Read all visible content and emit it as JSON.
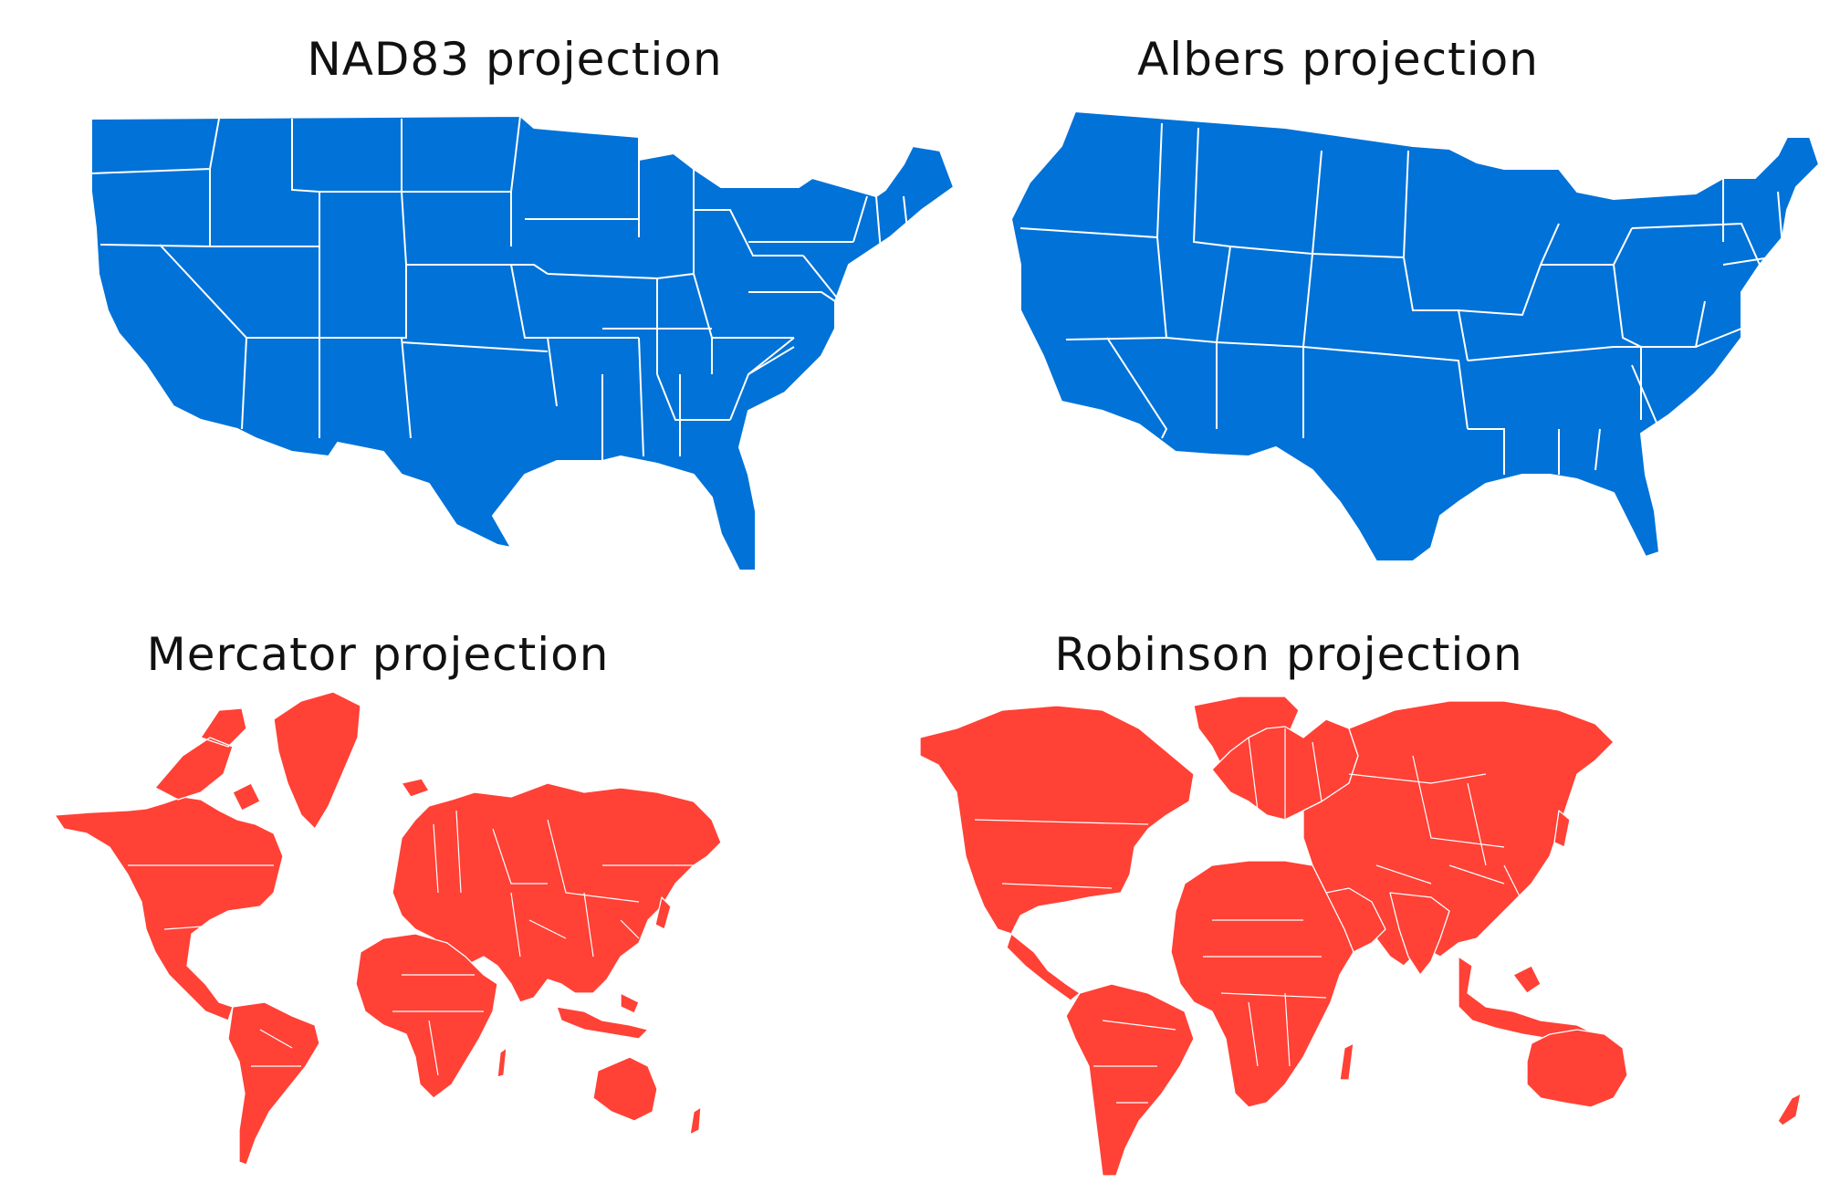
{
  "panels": [
    {
      "title": "NAD83 projection",
      "color": "#0072D8"
    },
    {
      "title": "Albers projection",
      "color": "#0072D8"
    },
    {
      "title": "Mercator projection",
      "color": "#FF4136"
    },
    {
      "title": "Robinson projection",
      "color": "#FF4136"
    }
  ]
}
